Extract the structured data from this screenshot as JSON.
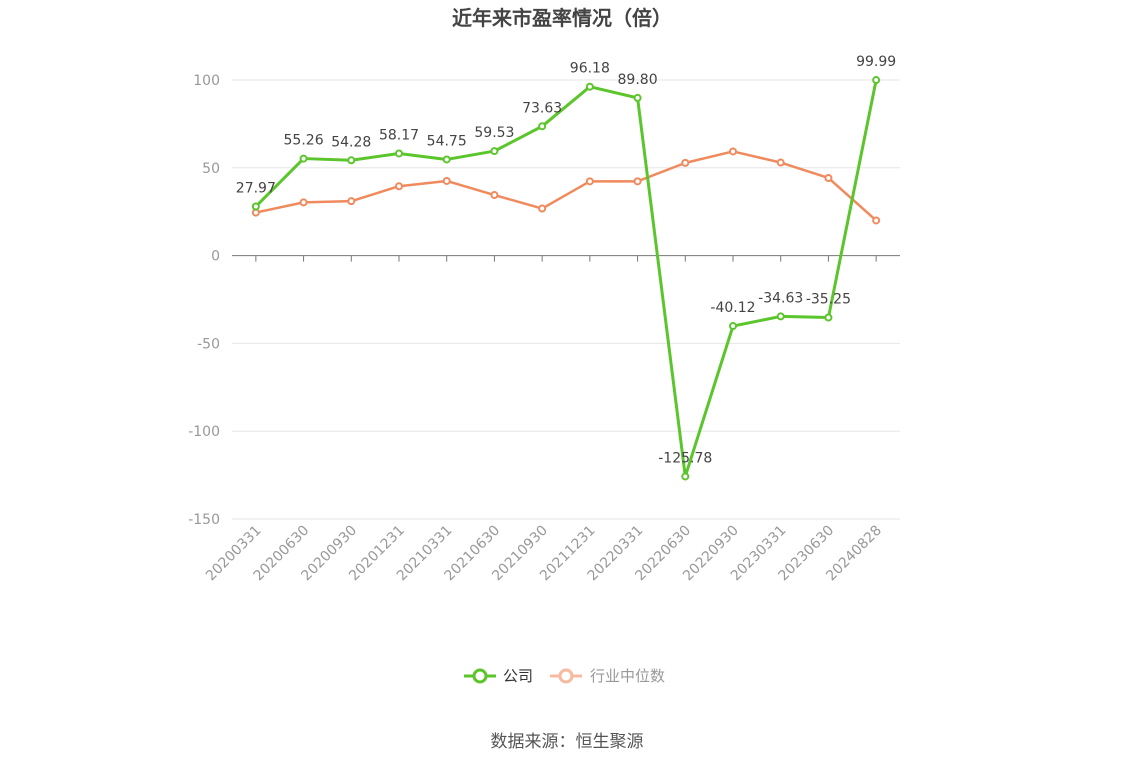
{
  "chart_data": {
    "type": "line",
    "title": "近年来市盈率情况（倍）",
    "xlabel": "",
    "ylabel": "",
    "ylim": [
      -150,
      100
    ],
    "yticks": [
      100,
      50,
      0,
      -50,
      -100,
      -150
    ],
    "grid": true,
    "legend_placement": "bottom-center",
    "categories": [
      "20200331",
      "20200630",
      "20200930",
      "20201231",
      "20210331",
      "20210630",
      "20210930",
      "20211231",
      "20220331",
      "20220630",
      "20220930",
      "20230331",
      "20230630",
      "20240828"
    ],
    "series": [
      {
        "name": "公司",
        "color": "#5bc52c",
        "show_labels": true,
        "values": [
          27.97,
          55.26,
          54.28,
          58.17,
          54.75,
          59.53,
          73.63,
          96.18,
          89.8,
          -125.78,
          -40.12,
          -34.63,
          -35.25,
          99.99
        ],
        "labels": [
          "27.97",
          "55.26",
          "54.28",
          "58.17",
          "54.75",
          "59.53",
          "73.63",
          "96.18",
          "89.80",
          "-125.78",
          "-40.12",
          "-34.63",
          "-35.25",
          "99.99"
        ]
      },
      {
        "name": "行业中位数",
        "color": "#f08a5d",
        "show_labels": false,
        "values": [
          24.5,
          30.3,
          31.0,
          39.5,
          42.5,
          34.5,
          26.8,
          42.3,
          42.3,
          52.8,
          59.3,
          53.0,
          44.2,
          20.0
        ]
      }
    ]
  },
  "legend_colors": {
    "company_legend": "#5bc52c",
    "industry_legend": "#f7b9a0",
    "industry_text": "#999999"
  },
  "source_text": "数据来源：恒生聚源"
}
